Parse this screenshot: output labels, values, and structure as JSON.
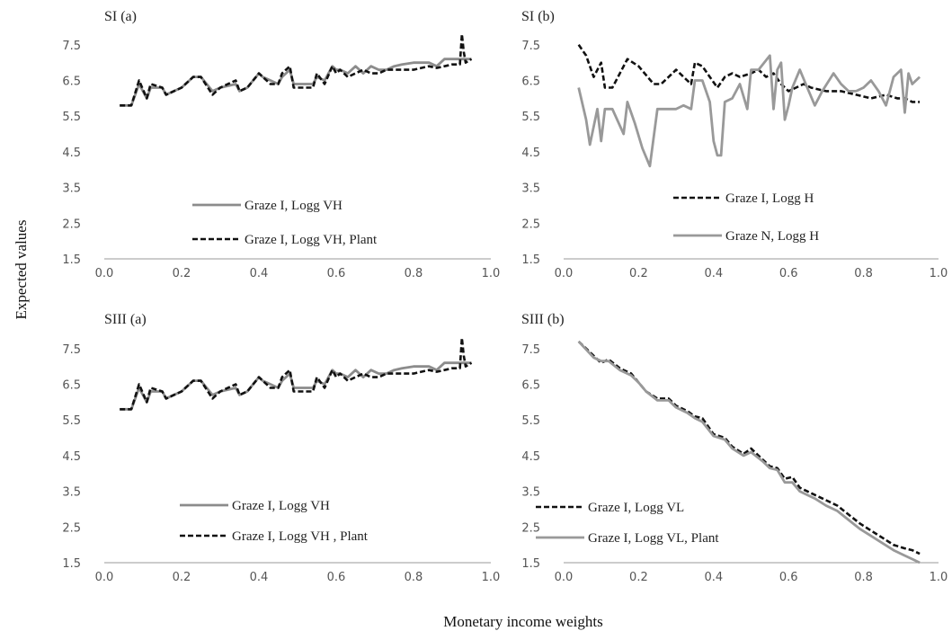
{
  "figure": {
    "xlabel": "Monetary income weights",
    "ylabel": "Expected values"
  },
  "chart_data": [
    {
      "type": "line",
      "title": "SI (a)",
      "xlim": [
        0.0,
        1.0
      ],
      "ylim": [
        1.5,
        8.0
      ],
      "xticks": [
        0.0,
        0.2,
        0.4,
        0.6,
        0.8,
        1.0
      ],
      "yticks": [
        1.5,
        2.5,
        3.5,
        4.5,
        5.5,
        6.5,
        7.5
      ],
      "legend_position": "bottom-center",
      "series": [
        {
          "name": "Graze I, Logg VH",
          "style": "solid",
          "color": "#8c8c8c",
          "x": [
            0.04,
            0.07,
            0.09,
            0.11,
            0.12,
            0.15,
            0.16,
            0.18,
            0.2,
            0.23,
            0.25,
            0.28,
            0.3,
            0.34,
            0.35,
            0.37,
            0.4,
            0.41,
            0.43,
            0.45,
            0.46,
            0.48,
            0.49,
            0.51,
            0.54,
            0.55,
            0.57,
            0.59,
            0.6,
            0.61,
            0.63,
            0.65,
            0.67,
            0.69,
            0.71,
            0.73,
            0.75,
            0.77,
            0.8,
            0.82,
            0.84,
            0.86,
            0.88,
            0.9,
            0.92,
            0.94,
            0.95
          ],
          "y": [
            5.8,
            5.8,
            6.4,
            6.0,
            6.3,
            6.3,
            6.1,
            6.2,
            6.3,
            6.6,
            6.6,
            6.2,
            6.3,
            6.4,
            6.2,
            6.3,
            6.7,
            6.6,
            6.5,
            6.4,
            6.6,
            6.8,
            6.4,
            6.4,
            6.4,
            6.6,
            6.5,
            6.9,
            6.8,
            6.8,
            6.7,
            6.9,
            6.7,
            6.9,
            6.8,
            6.8,
            6.9,
            6.95,
            7.0,
            7.0,
            7.0,
            6.9,
            7.1,
            7.1,
            7.1,
            7.1,
            7.1
          ]
        },
        {
          "name": "Graze I, Logg VH, Plant",
          "style": "dashed",
          "color": "#111111",
          "x": [
            0.04,
            0.07,
            0.09,
            0.11,
            0.12,
            0.15,
            0.16,
            0.18,
            0.2,
            0.23,
            0.25,
            0.28,
            0.3,
            0.34,
            0.35,
            0.37,
            0.4,
            0.41,
            0.43,
            0.45,
            0.46,
            0.48,
            0.49,
            0.51,
            0.54,
            0.55,
            0.57,
            0.59,
            0.6,
            0.61,
            0.63,
            0.65,
            0.67,
            0.69,
            0.71,
            0.73,
            0.75,
            0.77,
            0.8,
            0.82,
            0.84,
            0.86,
            0.88,
            0.9,
            0.92,
            0.925,
            0.93,
            0.935,
            0.95
          ],
          "y": [
            5.8,
            5.8,
            6.5,
            6.0,
            6.4,
            6.3,
            6.1,
            6.2,
            6.3,
            6.6,
            6.6,
            6.1,
            6.3,
            6.5,
            6.2,
            6.3,
            6.7,
            6.6,
            6.4,
            6.4,
            6.7,
            6.9,
            6.3,
            6.3,
            6.3,
            6.7,
            6.4,
            6.9,
            6.7,
            6.8,
            6.6,
            6.7,
            6.8,
            6.7,
            6.7,
            6.8,
            6.8,
            6.8,
            6.8,
            6.85,
            6.9,
            6.85,
            6.9,
            6.95,
            6.95,
            7.8,
            7.3,
            7.0,
            7.1
          ]
        }
      ]
    },
    {
      "type": "line",
      "title": "SI (b)",
      "xlim": [
        0.0,
        1.0
      ],
      "ylim": [
        1.5,
        8.0
      ],
      "xticks": [
        0.0,
        0.2,
        0.4,
        0.6,
        0.8,
        1.0
      ],
      "yticks": [
        1.5,
        2.5,
        3.5,
        4.5,
        5.5,
        6.5,
        7.5
      ],
      "legend_position": "bottom-right",
      "series": [
        {
          "name": "Graze I, Logg H",
          "style": "dashed",
          "color": "#111111",
          "x": [
            0.04,
            0.06,
            0.08,
            0.1,
            0.11,
            0.13,
            0.17,
            0.2,
            0.24,
            0.26,
            0.28,
            0.3,
            0.32,
            0.34,
            0.35,
            0.37,
            0.39,
            0.41,
            0.43,
            0.45,
            0.47,
            0.5,
            0.52,
            0.54,
            0.56,
            0.58,
            0.6,
            0.62,
            0.64,
            0.66,
            0.7,
            0.74,
            0.78,
            0.82,
            0.86,
            0.89,
            0.91,
            0.93,
            0.95
          ],
          "y": [
            7.5,
            7.2,
            6.6,
            7.0,
            6.3,
            6.3,
            7.1,
            6.9,
            6.4,
            6.4,
            6.6,
            6.8,
            6.6,
            6.4,
            7.0,
            6.9,
            6.6,
            6.3,
            6.6,
            6.7,
            6.6,
            6.7,
            6.8,
            6.6,
            6.7,
            6.4,
            6.2,
            6.3,
            6.4,
            6.3,
            6.2,
            6.2,
            6.1,
            6.0,
            6.1,
            6.0,
            6.0,
            5.9,
            5.9
          ]
        },
        {
          "name": "Graze N, Logg H",
          "style": "solid",
          "color": "#999999",
          "x": [
            0.04,
            0.06,
            0.07,
            0.09,
            0.1,
            0.11,
            0.13,
            0.16,
            0.17,
            0.19,
            0.21,
            0.23,
            0.25,
            0.28,
            0.3,
            0.32,
            0.34,
            0.35,
            0.37,
            0.39,
            0.4,
            0.41,
            0.42,
            0.43,
            0.45,
            0.47,
            0.49,
            0.5,
            0.52,
            0.55,
            0.56,
            0.57,
            0.58,
            0.59,
            0.6,
            0.61,
            0.63,
            0.65,
            0.67,
            0.69,
            0.72,
            0.74,
            0.76,
            0.78,
            0.8,
            0.82,
            0.84,
            0.86,
            0.88,
            0.9,
            0.91,
            0.92,
            0.93,
            0.95
          ],
          "y": [
            6.3,
            5.4,
            4.7,
            5.7,
            4.8,
            5.7,
            5.7,
            5.0,
            5.9,
            5.3,
            4.6,
            4.1,
            5.7,
            5.7,
            5.7,
            5.8,
            5.7,
            6.5,
            6.5,
            5.9,
            4.8,
            4.4,
            4.4,
            5.9,
            6.0,
            6.4,
            5.7,
            6.8,
            6.8,
            7.2,
            5.7,
            6.8,
            7.0,
            5.4,
            5.8,
            6.3,
            6.8,
            6.3,
            5.8,
            6.2,
            6.7,
            6.4,
            6.2,
            6.2,
            6.3,
            6.5,
            6.2,
            5.8,
            6.6,
            6.8,
            5.6,
            6.7,
            6.4,
            6.6
          ]
        }
      ]
    },
    {
      "type": "line",
      "title": "SIII (a)",
      "xlim": [
        0.0,
        1.0
      ],
      "ylim": [
        1.5,
        8.0
      ],
      "xticks": [
        0.0,
        0.2,
        0.4,
        0.6,
        0.8,
        1.0
      ],
      "yticks": [
        1.5,
        2.5,
        3.5,
        4.5,
        5.5,
        6.5,
        7.5
      ],
      "legend_position": "bottom-center",
      "series": [
        {
          "name": "Graze I, Logg VH",
          "style": "solid",
          "color": "#8c8c8c",
          "x": [
            0.04,
            0.07,
            0.09,
            0.11,
            0.12,
            0.15,
            0.16,
            0.18,
            0.2,
            0.23,
            0.25,
            0.28,
            0.3,
            0.34,
            0.35,
            0.37,
            0.4,
            0.41,
            0.43,
            0.45,
            0.46,
            0.48,
            0.49,
            0.51,
            0.54,
            0.55,
            0.57,
            0.59,
            0.6,
            0.61,
            0.63,
            0.65,
            0.67,
            0.69,
            0.71,
            0.73,
            0.75,
            0.77,
            0.8,
            0.82,
            0.84,
            0.86,
            0.88,
            0.9,
            0.92,
            0.94,
            0.95
          ],
          "y": [
            5.8,
            5.8,
            6.4,
            6.0,
            6.3,
            6.3,
            6.1,
            6.2,
            6.3,
            6.6,
            6.6,
            6.2,
            6.3,
            6.4,
            6.2,
            6.3,
            6.7,
            6.6,
            6.5,
            6.4,
            6.6,
            6.8,
            6.4,
            6.4,
            6.4,
            6.6,
            6.5,
            6.9,
            6.8,
            6.8,
            6.7,
            6.9,
            6.7,
            6.9,
            6.8,
            6.8,
            6.9,
            6.95,
            7.0,
            7.0,
            7.0,
            6.9,
            7.1,
            7.1,
            7.1,
            7.1,
            7.1
          ]
        },
        {
          "name": "Graze I, Logg VH , Plant",
          "style": "dashed",
          "color": "#111111",
          "x": [
            0.04,
            0.07,
            0.09,
            0.11,
            0.12,
            0.15,
            0.16,
            0.18,
            0.2,
            0.23,
            0.25,
            0.28,
            0.3,
            0.34,
            0.35,
            0.37,
            0.4,
            0.41,
            0.43,
            0.45,
            0.46,
            0.48,
            0.49,
            0.51,
            0.54,
            0.55,
            0.57,
            0.59,
            0.6,
            0.61,
            0.63,
            0.65,
            0.67,
            0.69,
            0.71,
            0.73,
            0.75,
            0.77,
            0.8,
            0.82,
            0.84,
            0.86,
            0.88,
            0.9,
            0.92,
            0.925,
            0.93,
            0.935,
            0.95
          ],
          "y": [
            5.8,
            5.8,
            6.5,
            6.0,
            6.4,
            6.3,
            6.1,
            6.2,
            6.3,
            6.6,
            6.6,
            6.1,
            6.3,
            6.5,
            6.2,
            6.3,
            6.7,
            6.6,
            6.4,
            6.4,
            6.7,
            6.9,
            6.3,
            6.3,
            6.3,
            6.7,
            6.4,
            6.9,
            6.7,
            6.8,
            6.6,
            6.7,
            6.8,
            6.7,
            6.7,
            6.8,
            6.8,
            6.8,
            6.8,
            6.85,
            6.9,
            6.85,
            6.9,
            6.95,
            6.95,
            7.8,
            7.3,
            7.0,
            7.1
          ]
        }
      ]
    },
    {
      "type": "line",
      "title": "SIII (b)",
      "xlim": [
        0.0,
        1.0
      ],
      "ylim": [
        1.5,
        8.0
      ],
      "xticks": [
        0.0,
        0.2,
        0.4,
        0.6,
        0.8,
        1.0
      ],
      "yticks": [
        1.5,
        2.5,
        3.5,
        4.5,
        5.5,
        6.5,
        7.5
      ],
      "legend_position": "bottom-left",
      "series": [
        {
          "name": "Graze I, Logg VL",
          "style": "dashed",
          "color": "#111111",
          "x": [
            0.04,
            0.08,
            0.1,
            0.12,
            0.15,
            0.18,
            0.2,
            0.22,
            0.25,
            0.28,
            0.3,
            0.33,
            0.35,
            0.37,
            0.4,
            0.43,
            0.45,
            0.48,
            0.5,
            0.53,
            0.55,
            0.57,
            0.59,
            0.61,
            0.63,
            0.65,
            0.67,
            0.7,
            0.73,
            0.76,
            0.79,
            0.82,
            0.85,
            0.88,
            0.91,
            0.93,
            0.95
          ],
          "y": [
            7.7,
            7.3,
            7.1,
            7.2,
            6.95,
            6.8,
            6.55,
            6.3,
            6.1,
            6.1,
            5.9,
            5.75,
            5.6,
            5.55,
            5.1,
            5.0,
            4.75,
            4.55,
            4.7,
            4.4,
            4.2,
            4.15,
            3.85,
            3.9,
            3.6,
            3.5,
            3.4,
            3.25,
            3.1,
            2.85,
            2.6,
            2.4,
            2.2,
            2.0,
            1.9,
            1.85,
            1.75
          ]
        },
        {
          "name": "Graze I, Logg VL, Plant",
          "style": "solid",
          "color": "#999999",
          "x": [
            0.04,
            0.08,
            0.1,
            0.12,
            0.15,
            0.18,
            0.2,
            0.22,
            0.25,
            0.28,
            0.3,
            0.33,
            0.35,
            0.37,
            0.4,
            0.43,
            0.45,
            0.48,
            0.5,
            0.53,
            0.55,
            0.57,
            0.59,
            0.61,
            0.63,
            0.65,
            0.67,
            0.7,
            0.73,
            0.76,
            0.79,
            0.82,
            0.85,
            0.88,
            0.91,
            0.93,
            0.95
          ],
          "y": [
            7.7,
            7.25,
            7.15,
            7.15,
            6.9,
            6.75,
            6.55,
            6.3,
            6.05,
            6.05,
            5.85,
            5.7,
            5.55,
            5.45,
            5.05,
            4.95,
            4.7,
            4.5,
            4.6,
            4.35,
            4.15,
            4.1,
            3.75,
            3.75,
            3.5,
            3.4,
            3.3,
            3.1,
            2.95,
            2.7,
            2.45,
            2.25,
            2.05,
            1.85,
            1.7,
            1.6,
            1.5
          ]
        }
      ]
    }
  ]
}
